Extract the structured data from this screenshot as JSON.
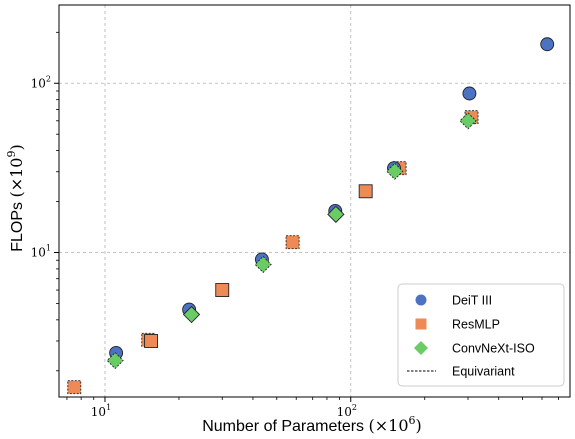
{
  "chart_data": {
    "type": "scatter",
    "xlabel": "Number of Parameters",
    "xlabel_unit": "(×10",
    "xlabel_exp": "6",
    "ylabel": "FLOPs",
    "ylabel_unit": "(×10",
    "ylabel_exp": "9",
    "x_scale": "log",
    "y_scale": "log",
    "xlim": [
      6.5,
      780
    ],
    "ylim": [
      1.4,
      290
    ],
    "x_ticks": [
      {
        "value": 10,
        "base": "10",
        "exp": "1"
      },
      {
        "value": 100,
        "base": "10",
        "exp": "2"
      }
    ],
    "y_ticks": [
      {
        "value": 10,
        "base": "10",
        "exp": "1"
      },
      {
        "value": 100,
        "base": "10",
        "exp": "2"
      }
    ],
    "grid": true,
    "legend_position": "bottom-right",
    "series": [
      {
        "name": "DeiT III",
        "marker": "circle",
        "color": "#4c72c4",
        "x": [
          11.1,
          22,
          43.5,
          86.5,
          150,
          304,
          630
        ],
        "y": [
          2.55,
          4.6,
          9.1,
          17.6,
          31.5,
          87,
          170
        ]
      },
      {
        "name": "ResMLP",
        "marker": "square",
        "color": "#ee8a55",
        "x": [
          7.5,
          15,
          15.4,
          30,
          58,
          115,
          158,
          310
        ],
        "y": [
          1.6,
          3.05,
          3.0,
          6.0,
          11.5,
          23,
          31.5,
          63
        ]
      },
      {
        "name": "ConvNeXt-ISO",
        "marker": "diamond",
        "color": "#6acc64",
        "x": [
          11,
          22.5,
          44,
          87,
          151,
          300
        ],
        "y": [
          2.3,
          4.3,
          8.5,
          16.8,
          30.2,
          60
        ]
      }
    ],
    "equivariant": {
      "label": "Equivariant",
      "points": [
        {
          "series": "ResMLP",
          "x": 7.5,
          "y": 1.6
        },
        {
          "series": "ResMLP",
          "x": 15,
          "y": 3.05
        },
        {
          "series": "ResMLP",
          "x": 58,
          "y": 11.5
        },
        {
          "series": "ResMLP",
          "x": 158,
          "y": 31.5
        },
        {
          "series": "ResMLP",
          "x": 310,
          "y": 63
        },
        {
          "series": "ConvNeXt-ISO",
          "x": 11,
          "y": 2.3
        },
        {
          "series": "ConvNeXt-ISO",
          "x": 44,
          "y": 8.5
        },
        {
          "series": "ConvNeXt-ISO",
          "x": 151,
          "y": 30.2
        },
        {
          "series": "ConvNeXt-ISO",
          "x": 300,
          "y": 60
        }
      ]
    }
  }
}
